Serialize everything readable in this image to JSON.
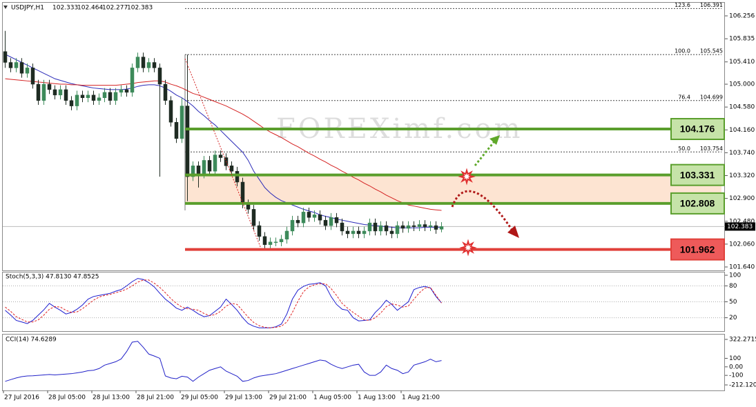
{
  "chart_data": [
    {
      "type": "candlestick",
      "title": "USDJPY,H1",
      "up_color": "#3d8a5a",
      "down_color": "#1e2b22",
      "categories": [
        "27 Jul 2016",
        null,
        null,
        null,
        null,
        null,
        null,
        null,
        "28 Jul 05:00",
        null,
        null,
        null,
        null,
        null,
        null,
        null,
        "28 Jul 13:00",
        null,
        null,
        null,
        null,
        null,
        null,
        null,
        "28 Jul 21:00",
        null,
        null,
        null,
        null,
        null,
        null,
        null,
        "29 Jul 05:00",
        null,
        null,
        null,
        null,
        null,
        null,
        null,
        "29 Jul 13:00",
        null,
        null,
        null,
        null,
        null,
        null,
        null,
        "29 Jul 21:00",
        null,
        null,
        null,
        null,
        null,
        null,
        null,
        "1 Aug 05:00",
        null,
        null,
        null,
        null,
        null,
        null,
        null,
        "1 Aug 13:00",
        null,
        null,
        null,
        null,
        null,
        null,
        null,
        "1 Aug 21:00",
        null,
        null,
        null,
        null,
        null,
        null,
        null
      ],
      "open": [
        105.6,
        105.4,
        105.3,
        105.4,
        105.2,
        105.3,
        105.0,
        104.7,
        105.0,
        104.9,
        104.8,
        104.9,
        104.7,
        104.6,
        104.8,
        104.75,
        104.8,
        104.7,
        104.75,
        104.85,
        104.7,
        104.85,
        104.9,
        104.85,
        105.3,
        105.5,
        105.3,
        105.4,
        105.3,
        105.0,
        104.7,
        104.3,
        104.0,
        104.6,
        103.3,
        103.5,
        103.35,
        103.6,
        103.4,
        103.7,
        103.65,
        103.5,
        103.4,
        103.2,
        102.8,
        102.7,
        102.4,
        102.2,
        102.05,
        102.1,
        102.1,
        102.15,
        102.3,
        102.5,
        102.45,
        102.65,
        102.55,
        102.6,
        102.5,
        102.4,
        102.55,
        102.45,
        102.3,
        102.25,
        102.3,
        102.25,
        102.3,
        102.45,
        102.3,
        102.4,
        102.3,
        102.25,
        102.4,
        102.35,
        102.4,
        102.38,
        102.42,
        102.38,
        102.4,
        102.333
      ],
      "high": [
        105.98,
        105.48,
        105.48,
        105.48,
        105.38,
        105.38,
        105.08,
        105.08,
        105.08,
        104.98,
        104.98,
        104.98,
        104.78,
        104.88,
        104.88,
        104.88,
        104.88,
        104.83,
        104.93,
        104.93,
        104.93,
        104.98,
        104.98,
        105.38,
        105.58,
        105.58,
        105.48,
        105.48,
        105.38,
        105.08,
        104.78,
        104.38,
        104.75,
        105.545,
        103.58,
        103.58,
        103.68,
        103.68,
        103.78,
        103.78,
        103.73,
        103.58,
        103.48,
        103.28,
        102.88,
        102.78,
        102.48,
        102.28,
        102.18,
        102.18,
        102.23,
        102.38,
        102.58,
        102.58,
        102.73,
        102.73,
        102.68,
        102.68,
        102.58,
        102.63,
        102.63,
        102.53,
        102.38,
        102.38,
        102.38,
        102.38,
        102.53,
        102.53,
        102.48,
        102.48,
        102.38,
        102.48,
        102.48,
        102.48,
        102.48,
        102.5,
        102.5,
        102.48,
        102.48,
        102.464
      ],
      "low": [
        105.3,
        105.22,
        105.22,
        105.12,
        105.12,
        104.92,
        104.62,
        104.62,
        104.82,
        104.72,
        104.72,
        104.62,
        104.52,
        104.52,
        104.67,
        104.67,
        104.62,
        104.62,
        104.67,
        104.62,
        104.62,
        104.77,
        104.77,
        104.77,
        105.22,
        105.22,
        105.22,
        105.22,
        103.3,
        104.62,
        104.22,
        103.92,
        103.92,
        102.85,
        103.22,
        103.1,
        103.27,
        103.32,
        103.32,
        103.57,
        103.42,
        103.32,
        103.12,
        102.72,
        102.62,
        102.32,
        102.12,
        101.97,
        101.97,
        102.02,
        102.02,
        102.07,
        102.22,
        102.37,
        102.37,
        102.47,
        102.47,
        102.42,
        102.32,
        102.32,
        102.37,
        102.22,
        102.17,
        102.17,
        102.17,
        102.17,
        102.22,
        102.22,
        102.22,
        102.22,
        102.17,
        102.17,
        102.27,
        102.27,
        102.3,
        102.3,
        102.3,
        102.3,
        102.25,
        102.277
      ],
      "close": [
        105.4,
        105.3,
        105.4,
        105.2,
        105.3,
        105.0,
        104.7,
        105.0,
        104.9,
        104.8,
        104.9,
        104.7,
        104.6,
        104.8,
        104.75,
        104.8,
        104.7,
        104.75,
        104.85,
        104.7,
        104.85,
        104.9,
        104.85,
        105.3,
        105.5,
        105.3,
        105.4,
        105.3,
        105.0,
        104.7,
        104.3,
        104.0,
        104.6,
        103.3,
        103.5,
        103.35,
        103.6,
        103.4,
        103.7,
        103.65,
        103.5,
        103.4,
        103.2,
        102.8,
        102.7,
        102.4,
        102.2,
        102.05,
        102.1,
        102.1,
        102.15,
        102.3,
        102.5,
        102.45,
        102.65,
        102.55,
        102.6,
        102.5,
        102.4,
        102.55,
        102.45,
        102.3,
        102.25,
        102.3,
        102.25,
        102.3,
        102.45,
        102.3,
        102.4,
        102.3,
        102.25,
        102.4,
        102.35,
        102.4,
        102.38,
        102.42,
        102.38,
        102.4,
        102.33,
        102.383
      ],
      "overlays": [
        {
          "color": "#2a2ab8",
          "values": [
            105.55,
            105.5,
            105.45,
            105.4,
            105.35,
            105.3,
            105.25,
            105.2,
            105.15,
            105.1,
            105.07,
            105.04,
            105.01,
            104.99,
            104.97,
            104.95,
            104.93,
            104.92,
            104.91,
            104.9,
            104.9,
            104.9,
            104.91,
            104.93,
            104.96,
            104.98,
            104.99,
            104.99,
            104.97,
            104.93,
            104.87,
            104.8,
            104.75,
            104.68,
            104.6,
            104.5,
            104.42,
            104.33,
            104.25,
            104.15,
            104.05,
            103.95,
            103.85,
            103.75,
            103.6,
            103.4,
            103.25,
            103.1,
            103.0,
            102.92,
            102.86,
            102.82,
            102.78,
            102.74,
            102.7,
            102.67,
            102.64,
            102.6,
            102.57,
            102.55,
            102.52,
            102.5,
            102.48,
            102.46,
            102.44,
            102.42,
            102.41,
            102.4,
            102.39,
            102.38,
            102.37,
            102.36,
            102.36,
            102.36,
            102.36,
            102.36,
            102.37,
            102.37,
            102.37,
            102.37
          ]
        },
        {
          "color": "#d42020",
          "values": [
            105.1,
            105.09,
            105.08,
            105.07,
            105.06,
            105.05,
            105.04,
            105.03,
            105.02,
            105.01,
            105.0,
            105.0,
            104.99,
            104.99,
            104.98,
            104.98,
            104.98,
            104.98,
            104.98,
            104.98,
            104.98,
            104.99,
            105.0,
            105.01,
            105.03,
            105.04,
            105.05,
            105.06,
            105.06,
            105.04,
            105.0,
            104.97,
            104.93,
            104.88,
            104.83,
            104.8,
            104.76,
            104.72,
            104.68,
            104.64,
            104.6,
            104.55,
            104.5,
            104.45,
            104.39,
            104.32,
            104.25,
            104.18,
            104.12,
            104.07,
            104.02,
            103.96,
            103.9,
            103.85,
            103.79,
            103.73,
            103.68,
            103.62,
            103.57,
            103.51,
            103.46,
            103.4,
            103.35,
            103.29,
            103.24,
            103.18,
            103.13,
            103.07,
            103.02,
            102.96,
            102.91,
            102.86,
            102.82,
            102.78,
            102.76,
            102.74,
            102.72,
            102.7,
            102.69,
            102.68
          ]
        }
      ],
      "ylim": [
        101.64,
        106.256
      ],
      "yticks": [
        106.256,
        105.835,
        {
          "value": 105.41,
          "label": "105.410"
        },
        {
          "value": 105,
          "label": "105.000"
        },
        {
          "value": 104.58,
          "label": "104.580"
        },
        {
          "value": 104.16,
          "label": "104.160"
        },
        {
          "value": 103.74,
          "label": "103.740"
        },
        {
          "value": 103.32,
          "label": "103.320"
        },
        {
          "value": 102.9,
          "label": "102.900"
        },
        {
          "value": 102.48,
          "label": "102.480"
        },
        {
          "value": 102.06,
          "label": "102.060"
        },
        {
          "value": 101.64,
          "label": "101.640"
        }
      ],
      "fibo": [
        {
          "level": "123.6",
          "price": 106.391
        },
        {
          "level": "100.0",
          "price": 105.545
        },
        {
          "level": "76.4",
          "price": 104.699
        },
        {
          "level": "50.0",
          "price": 103.754
        }
      ],
      "levels": [
        {
          "value": 104.176,
          "color": "#5a9e2c",
          "box": "#c6e3a8"
        },
        {
          "value": 103.331,
          "color": "#5a9e2c",
          "box": "#c6e3a8"
        },
        {
          "value": 102.808,
          "color": "#5a9e2c",
          "box": "#c6e3a8"
        },
        {
          "value": 101.962,
          "color": "#e0403a",
          "box": "#ee5a5a"
        }
      ],
      "zone_color": "#fde4d2",
      "watermark": "FOREXimf.com"
    },
    {
      "type": "line",
      "title": "Stoch(5,3,3) 47.8130 47.8525",
      "ylim": [
        0,
        100
      ],
      "yticks": [
        100,
        80,
        50,
        20
      ],
      "series": [
        {
          "color": "#1c1ccf",
          "values": [
            34,
            25,
            15,
            12,
            9,
            15,
            25,
            35,
            47,
            40,
            34,
            27,
            30,
            36,
            44,
            55,
            60,
            62,
            64,
            66,
            70,
            73,
            80,
            88,
            94,
            92,
            86,
            78,
            66,
            55,
            47,
            38,
            34,
            40,
            34,
            27,
            22,
            24,
            32,
            40,
            55,
            45,
            34,
            20,
            9,
            4,
            1,
            1,
            1,
            3,
            8,
            27,
            55,
            72,
            79,
            83,
            84,
            86,
            80,
            60,
            45,
            36,
            34,
            20,
            14,
            15,
            16,
            30,
            40,
            53,
            45,
            34,
            42,
            50,
            73,
            77,
            79,
            76,
            60,
            47.813
          ]
        },
        {
          "color": "#e02020",
          "dashed": true,
          "values": [
            40,
            32,
            22,
            17,
            12,
            12,
            16,
            25,
            36,
            41,
            40,
            34,
            30,
            31,
            37,
            45,
            53,
            59,
            62,
            64,
            67,
            70,
            74,
            80,
            87,
            91,
            91,
            85,
            77,
            67,
            56,
            47,
            40,
            37,
            36,
            34,
            28,
            24,
            26,
            32,
            42,
            47,
            45,
            33,
            21,
            11,
            5,
            2,
            1,
            2,
            4,
            12,
            30,
            51,
            69,
            78,
            82,
            84,
            84,
            75,
            62,
            47,
            38,
            30,
            23,
            16,
            15,
            20,
            29,
            41,
            46,
            44,
            40,
            42,
            55,
            67,
            76,
            77,
            62,
            47.8525
          ]
        }
      ]
    },
    {
      "type": "line",
      "title": "CCI(14) 74.6289",
      "ylim": [
        -212.1202,
        322.2715
      ],
      "yticks": [
        322.2715,
        100,
        {
          "value": 0,
          "label": "0.00"
        },
        -100,
        -212.1202
      ],
      "series": [
        {
          "color": "#2020c8",
          "values": [
            -170,
            -150,
            -130,
            -115,
            -107,
            -105,
            -100,
            -95,
            -90,
            -95,
            -90,
            -85,
            -80,
            -70,
            -60,
            -45,
            -40,
            -20,
            20,
            40,
            60,
            93,
            180,
            290,
            300,
            230,
            150,
            127,
            100,
            -107,
            -130,
            -140,
            -110,
            -120,
            -170,
            -120,
            -80,
            -40,
            -20,
            0,
            -50,
            -80,
            -110,
            -170,
            -160,
            -130,
            -110,
            -100,
            -90,
            -80,
            -60,
            -40,
            -20,
            0,
            20,
            40,
            60,
            80,
            70,
            30,
            0,
            -20,
            0,
            20,
            30,
            -60,
            -100,
            -100,
            -60,
            20,
            -20,
            -40,
            -80,
            -60,
            20,
            40,
            60,
            90,
            60,
            74.6289
          ]
        }
      ]
    }
  ]
}
